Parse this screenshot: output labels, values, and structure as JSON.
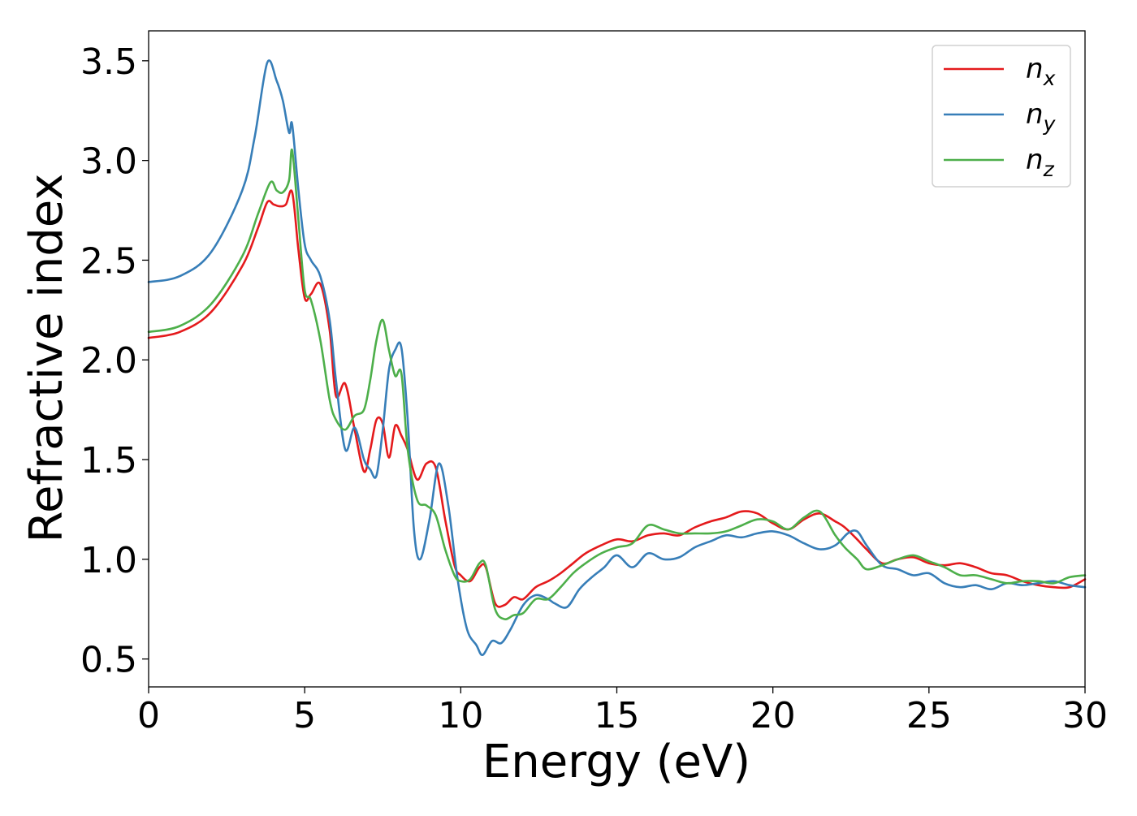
{
  "chart_data": {
    "type": "line",
    "title": "",
    "xlabel": "Energy (eV)",
    "ylabel": "Refractive index",
    "xlim": [
      0,
      30
    ],
    "ylim": [
      0.36,
      3.65
    ],
    "xticks": [
      0,
      5,
      10,
      15,
      20,
      25,
      30
    ],
    "xtick_labels": [
      "0",
      "5",
      "10",
      "15",
      "20",
      "25",
      "30"
    ],
    "yticks": [
      0.5,
      1.0,
      1.5,
      2.0,
      2.5,
      3.0,
      3.5
    ],
    "ytick_labels": [
      "0.5",
      "1.0",
      "1.5",
      "2.0",
      "2.5",
      "3.0",
      "3.5"
    ],
    "grid": false,
    "legend_position": "top-right",
    "series": [
      {
        "name": "n",
        "subscript": "x",
        "color": "#e41a1c",
        "x": [
          0,
          1,
          2,
          3,
          3.5,
          3.8,
          4.0,
          4.2,
          4.4,
          4.6,
          4.8,
          5.0,
          5.2,
          5.5,
          5.8,
          6.0,
          6.3,
          6.6,
          6.9,
          7.1,
          7.3,
          7.5,
          7.7,
          7.9,
          8.1,
          8.3,
          8.6,
          8.9,
          9.2,
          9.5,
          9.8,
          10.0,
          10.3,
          10.6,
          10.8,
          11.1,
          11.4,
          11.7,
          12.0,
          12.4,
          12.8,
          13.2,
          13.6,
          14.0,
          14.5,
          15.0,
          15.5,
          16.0,
          16.5,
          17.0,
          17.5,
          18.0,
          18.5,
          19.0,
          19.5,
          20.0,
          20.5,
          21.0,
          21.5,
          22.0,
          22.3,
          22.7,
          23.0,
          23.5,
          24.0,
          24.5,
          25.0,
          25.5,
          26.0,
          26.5,
          27.0,
          27.5,
          28.0,
          28.5,
          29.0,
          29.5,
          30.0
        ],
        "y": [
          2.11,
          2.14,
          2.24,
          2.47,
          2.66,
          2.79,
          2.78,
          2.77,
          2.78,
          2.84,
          2.55,
          2.31,
          2.33,
          2.38,
          2.15,
          1.82,
          1.88,
          1.65,
          1.44,
          1.55,
          1.7,
          1.68,
          1.51,
          1.67,
          1.62,
          1.55,
          1.4,
          1.48,
          1.46,
          1.2,
          0.97,
          0.92,
          0.89,
          0.96,
          0.96,
          0.78,
          0.77,
          0.81,
          0.8,
          0.86,
          0.89,
          0.93,
          0.98,
          1.03,
          1.07,
          1.1,
          1.09,
          1.12,
          1.13,
          1.12,
          1.16,
          1.19,
          1.21,
          1.24,
          1.23,
          1.18,
          1.15,
          1.2,
          1.23,
          1.19,
          1.16,
          1.1,
          1.05,
          0.98,
          1.0,
          1.01,
          0.98,
          0.97,
          0.98,
          0.96,
          0.93,
          0.92,
          0.89,
          0.87,
          0.86,
          0.86,
          0.9
        ]
      },
      {
        "name": "n",
        "subscript": "y",
        "color": "#377eb8",
        "x": [
          0,
          1,
          2,
          3,
          3.4,
          3.8,
          4.1,
          4.3,
          4.5,
          4.6,
          4.8,
          5.0,
          5.2,
          5.5,
          5.8,
          6.0,
          6.3,
          6.6,
          6.9,
          7.1,
          7.3,
          7.5,
          7.7,
          7.9,
          8.1,
          8.3,
          8.5,
          8.7,
          9.0,
          9.3,
          9.6,
          9.9,
          10.2,
          10.5,
          10.7,
          11.0,
          11.3,
          11.6,
          12.0,
          12.4,
          12.8,
          13.0,
          13.4,
          13.8,
          14.2,
          14.6,
          15.0,
          15.5,
          16.0,
          16.5,
          17.0,
          17.5,
          18.0,
          18.5,
          19.0,
          19.5,
          20.0,
          20.5,
          21.0,
          21.5,
          22.0,
          22.4,
          22.7,
          23.0,
          23.5,
          24.0,
          24.5,
          25.0,
          25.5,
          26.0,
          26.5,
          27.0,
          27.5,
          28.0,
          28.5,
          29.0,
          29.5,
          30.0
        ],
        "y": [
          2.39,
          2.42,
          2.54,
          2.85,
          3.12,
          3.49,
          3.4,
          3.3,
          3.14,
          3.18,
          2.85,
          2.58,
          2.5,
          2.42,
          2.2,
          1.9,
          1.55,
          1.66,
          1.5,
          1.45,
          1.42,
          1.65,
          1.95,
          2.05,
          2.06,
          1.7,
          1.15,
          1.0,
          1.2,
          1.48,
          1.27,
          0.9,
          0.65,
          0.57,
          0.52,
          0.59,
          0.58,
          0.65,
          0.77,
          0.82,
          0.8,
          0.78,
          0.76,
          0.85,
          0.91,
          0.96,
          1.02,
          0.96,
          1.03,
          1.0,
          1.01,
          1.06,
          1.09,
          1.12,
          1.11,
          1.13,
          1.14,
          1.12,
          1.08,
          1.05,
          1.07,
          1.13,
          1.14,
          1.07,
          0.97,
          0.95,
          0.92,
          0.93,
          0.88,
          0.86,
          0.87,
          0.85,
          0.88,
          0.87,
          0.88,
          0.89,
          0.87,
          0.86
        ]
      },
      {
        "name": "n",
        "subscript": "z",
        "color": "#4daf4a",
        "x": [
          0,
          1,
          2,
          3,
          3.5,
          3.9,
          4.1,
          4.3,
          4.5,
          4.6,
          4.8,
          5.0,
          5.2,
          5.5,
          5.8,
          6.0,
          6.3,
          6.6,
          6.9,
          7.1,
          7.3,
          7.5,
          7.7,
          7.9,
          8.1,
          8.3,
          8.6,
          8.9,
          9.2,
          9.5,
          9.8,
          10.0,
          10.3,
          10.6,
          10.8,
          11.1,
          11.4,
          11.7,
          12.0,
          12.4,
          12.8,
          13.2,
          13.6,
          14.0,
          14.5,
          15.0,
          15.5,
          16.0,
          16.5,
          17.0,
          17.5,
          18.0,
          18.5,
          19.0,
          19.5,
          20.0,
          20.5,
          21.0,
          21.5,
          22.0,
          22.3,
          22.7,
          23.0,
          23.5,
          24.0,
          24.5,
          25.0,
          25.5,
          26.0,
          26.5,
          27.0,
          27.5,
          28.0,
          28.5,
          29.0,
          29.5,
          30.0
        ],
        "y": [
          2.14,
          2.17,
          2.28,
          2.52,
          2.73,
          2.89,
          2.85,
          2.84,
          2.9,
          3.05,
          2.7,
          2.35,
          2.3,
          2.1,
          1.8,
          1.7,
          1.65,
          1.72,
          1.75,
          1.9,
          2.1,
          2.2,
          2.05,
          1.92,
          1.93,
          1.55,
          1.3,
          1.27,
          1.22,
          1.05,
          0.92,
          0.89,
          0.9,
          0.98,
          0.97,
          0.75,
          0.7,
          0.72,
          0.73,
          0.8,
          0.8,
          0.86,
          0.93,
          0.98,
          1.03,
          1.06,
          1.08,
          1.17,
          1.15,
          1.13,
          1.13,
          1.13,
          1.14,
          1.17,
          1.2,
          1.19,
          1.15,
          1.21,
          1.24,
          1.12,
          1.06,
          1.0,
          0.95,
          0.97,
          1.0,
          1.02,
          0.99,
          0.96,
          0.92,
          0.92,
          0.9,
          0.88,
          0.89,
          0.89,
          0.88,
          0.91,
          0.92
        ]
      }
    ]
  }
}
